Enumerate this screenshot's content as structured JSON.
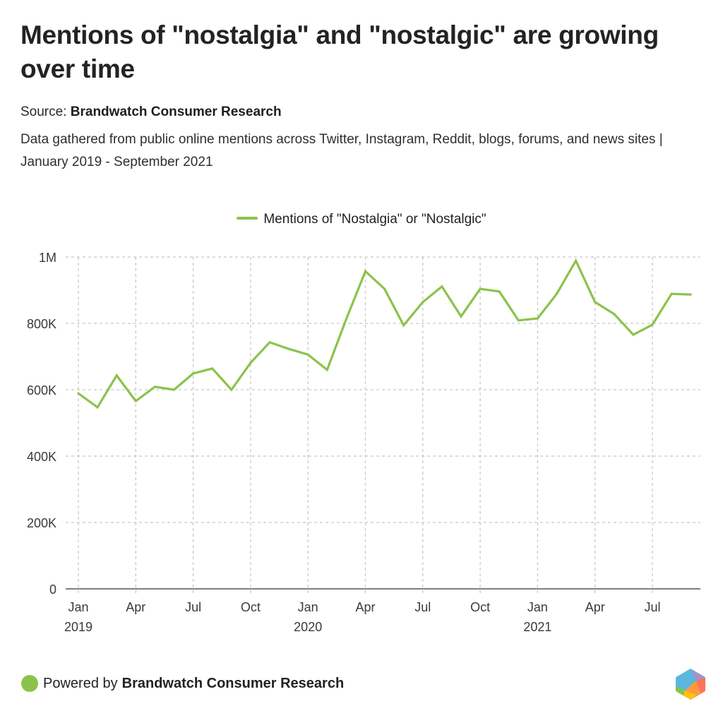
{
  "header": {
    "title": "Mentions of \"nostalgia\" and \"nostalgic\" are growing over time",
    "source_prefix": "Source:",
    "source_name": "Brandwatch Consumer Research",
    "description": "Data gathered from public online mentions across Twitter, Instagram, Reddit, blogs, forums, and news sites | January 2019 - September 2021"
  },
  "footer": {
    "powered_prefix": "Powered by",
    "powered_name": "Brandwatch Consumer Research",
    "logo_icon": "brandwatch-hexagon-logo"
  },
  "colors": {
    "series": "#8bc34a",
    "grid": "#c8c8c8",
    "axis": "#555555"
  },
  "chart_data": {
    "type": "line",
    "title": "Mentions of \"nostalgia\" and \"nostalgic\" are growing over time",
    "xlabel": "",
    "ylabel": "",
    "ylim": [
      0,
      1000000
    ],
    "yticks": [
      0,
      200000,
      400000,
      600000,
      800000,
      1000000
    ],
    "ytick_labels": [
      "0",
      "200K",
      "400K",
      "600K",
      "800K",
      "1M"
    ],
    "xtick_labels": [
      {
        "index": 0,
        "label": "Jan",
        "year": "2019"
      },
      {
        "index": 3,
        "label": "Apr",
        "year": ""
      },
      {
        "index": 6,
        "label": "Jul",
        "year": ""
      },
      {
        "index": 9,
        "label": "Oct",
        "year": ""
      },
      {
        "index": 12,
        "label": "Jan",
        "year": "2020"
      },
      {
        "index": 15,
        "label": "Apr",
        "year": ""
      },
      {
        "index": 18,
        "label": "Jul",
        "year": ""
      },
      {
        "index": 21,
        "label": "Oct",
        "year": ""
      },
      {
        "index": 24,
        "label": "Jan",
        "year": "2021"
      },
      {
        "index": 27,
        "label": "Apr",
        "year": ""
      },
      {
        "index": 30,
        "label": "Jul",
        "year": ""
      }
    ],
    "grid": true,
    "legend": "top-center",
    "x": [
      "2019-01",
      "2019-02",
      "2019-03",
      "2019-04",
      "2019-05",
      "2019-06",
      "2019-07",
      "2019-08",
      "2019-09",
      "2019-10",
      "2019-11",
      "2019-12",
      "2020-01",
      "2020-02",
      "2020-03",
      "2020-04",
      "2020-05",
      "2020-06",
      "2020-07",
      "2020-08",
      "2020-09",
      "2020-10",
      "2020-11",
      "2020-12",
      "2021-01",
      "2021-02",
      "2021-03",
      "2021-04",
      "2021-05",
      "2021-06",
      "2021-07",
      "2021-08",
      "2021-09"
    ],
    "series": [
      {
        "name": "Mentions of \"Nostalgia\" or \"Nostalgic\"",
        "values": [
          589000,
          547000,
          643000,
          566000,
          609000,
          600000,
          649000,
          664000,
          600000,
          681000,
          743000,
          723000,
          706000,
          660000,
          813000,
          957000,
          904000,
          794000,
          864000,
          911000,
          821000,
          904000,
          896000,
          809000,
          815000,
          889000,
          989000,
          864000,
          828000,
          766000,
          796000,
          889000,
          887000
        ]
      }
    ]
  }
}
